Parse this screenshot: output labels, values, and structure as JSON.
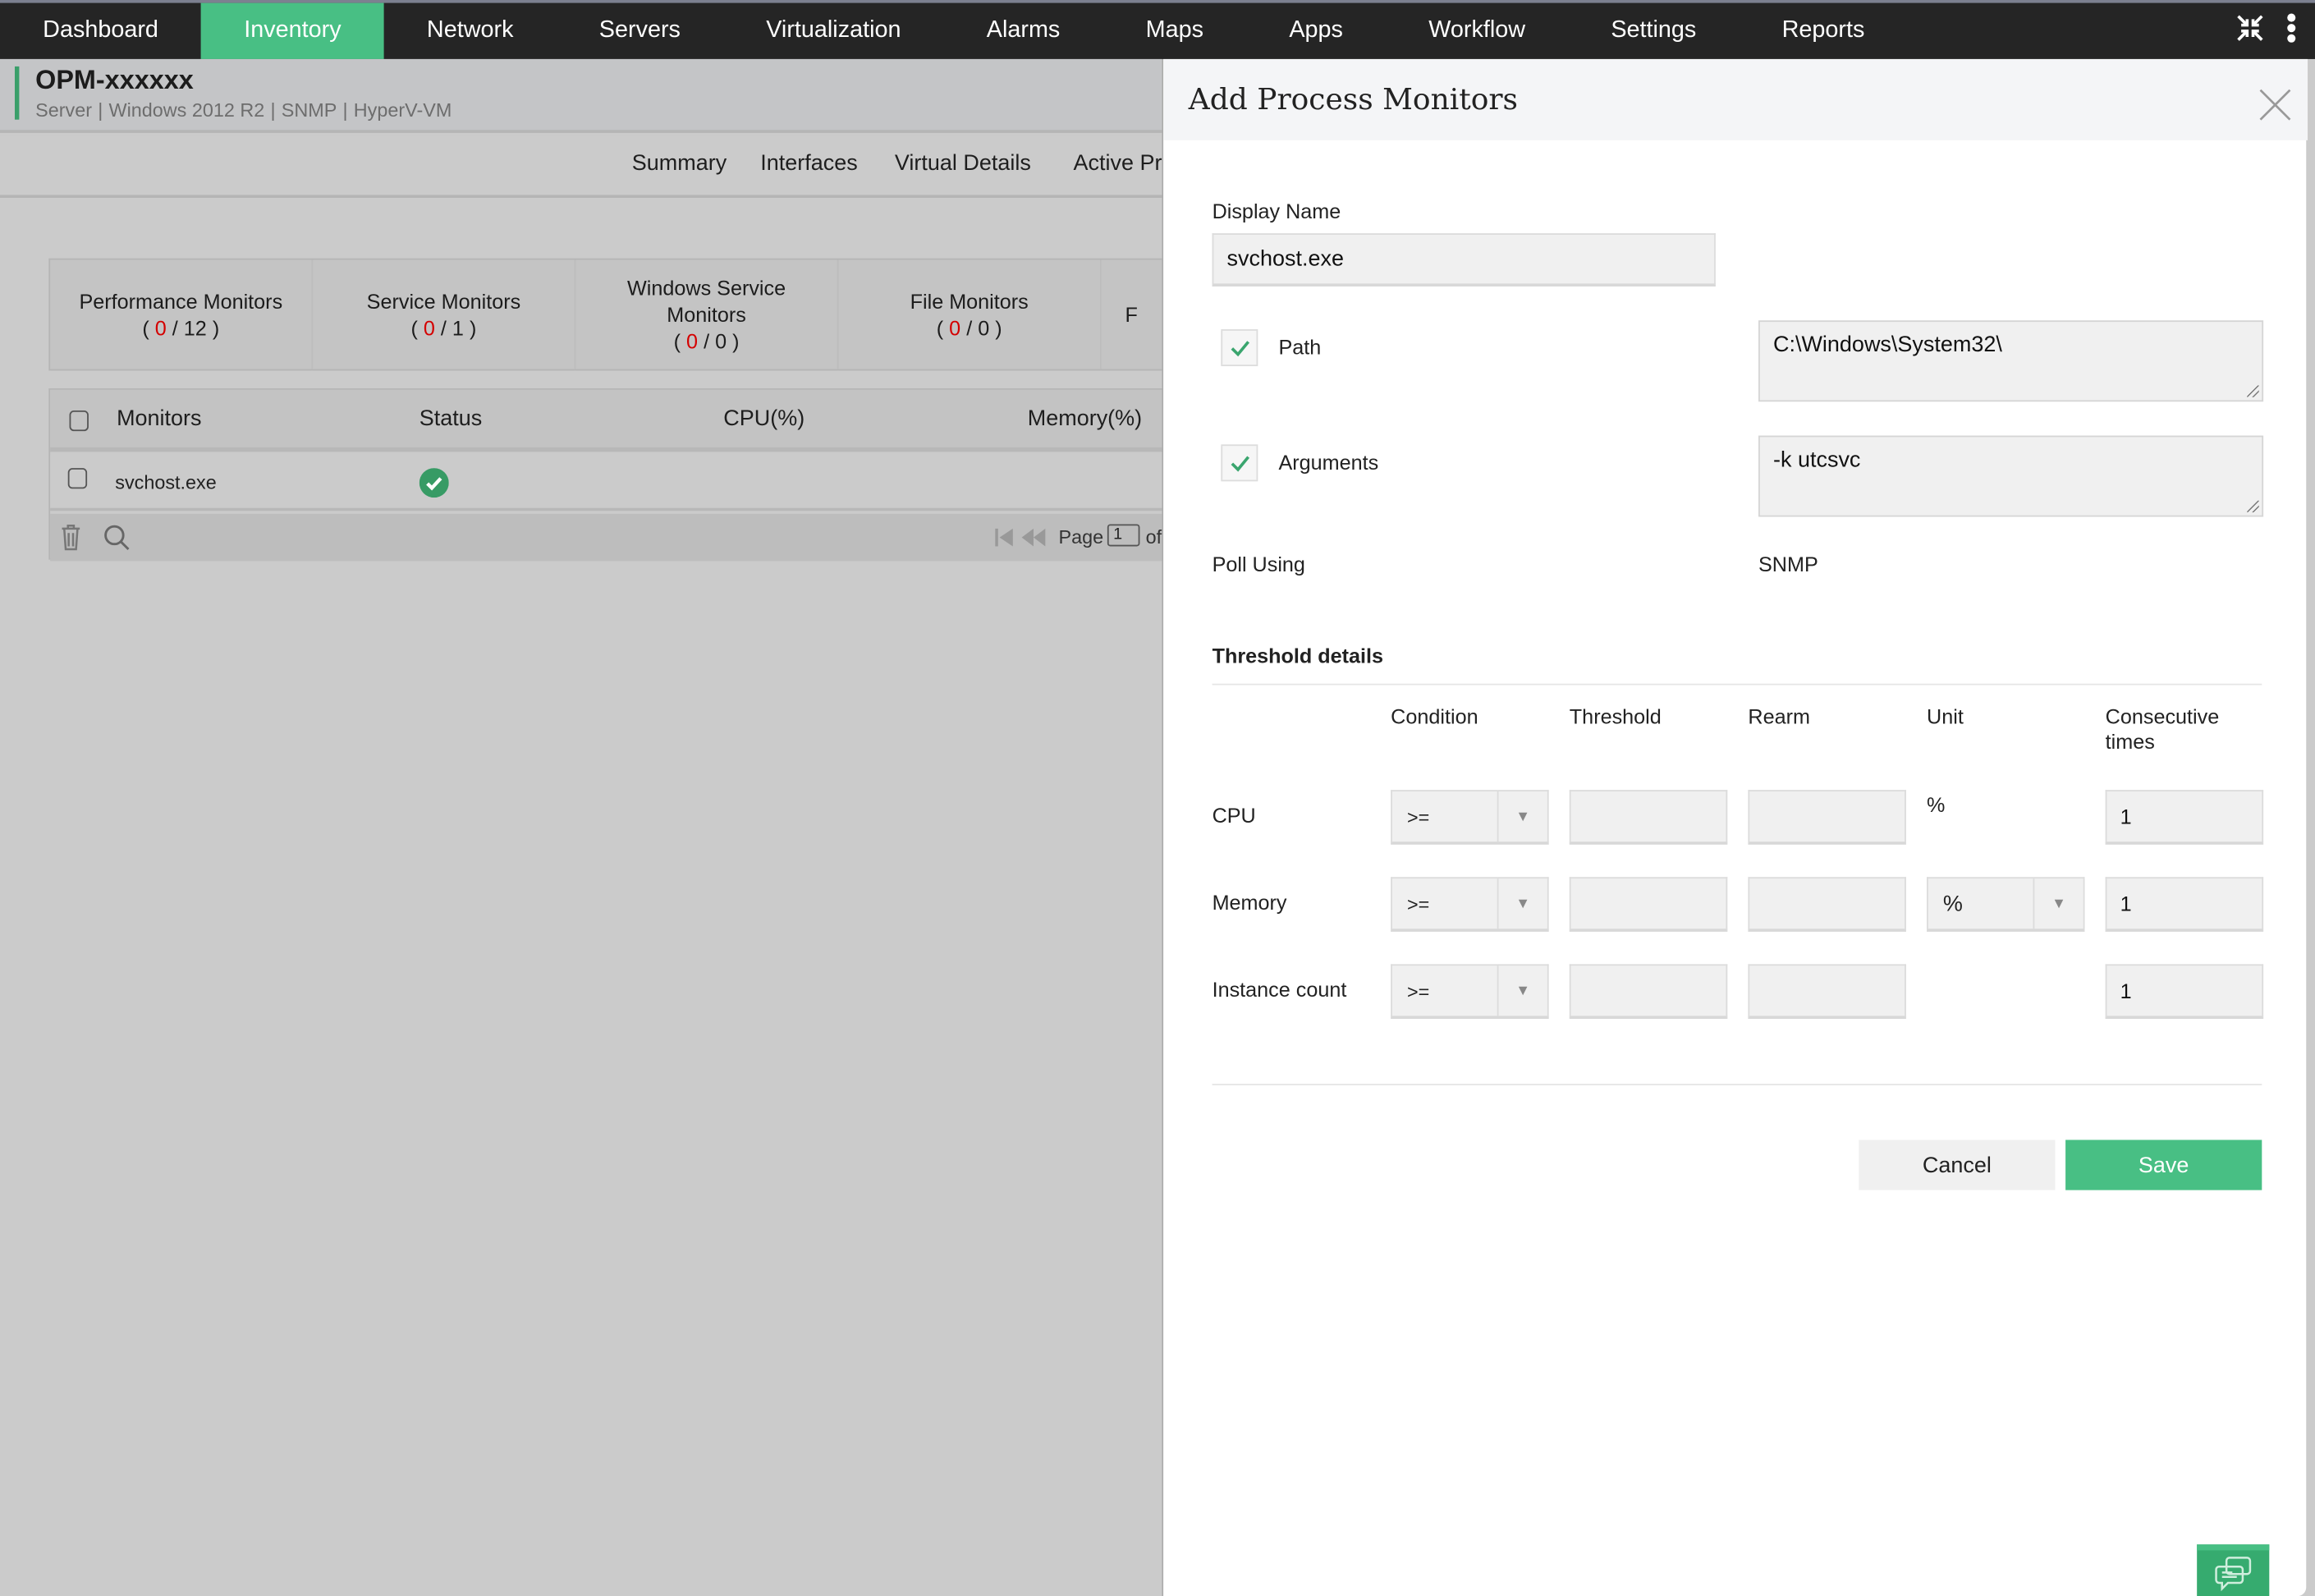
{
  "nav": {
    "items": [
      "Dashboard",
      "Inventory",
      "Network",
      "Servers",
      "Virtualization",
      "Alarms",
      "Maps",
      "Apps",
      "Workflow",
      "Settings",
      "Reports"
    ],
    "active": "Inventory",
    "accent": "#48bf84",
    "icons": [
      "collapse-icon",
      "more-vertical-icon"
    ]
  },
  "device": {
    "name": "OPM-xxxxxx",
    "type": "Server",
    "os": "Windows 2012 R2",
    "protocol": "SNMP",
    "category": "HyperV-VM"
  },
  "tabs": [
    "Summary",
    "Interfaces",
    "Virtual Details",
    "Active Pr"
  ],
  "cards": [
    {
      "label": "Performance Monitors",
      "down": "0",
      "total": "12"
    },
    {
      "label": "Service Monitors",
      "down": "0",
      "total": "1"
    },
    {
      "label": "Windows Service Monitors",
      "down": "0",
      "total": "0"
    },
    {
      "label": "File Monitors",
      "down": "0",
      "total": "0"
    },
    {
      "label": "F",
      "down": "",
      "total": ""
    }
  ],
  "table": {
    "headers": [
      "Monitors",
      "Status",
      "CPU(%)",
      "Memory(%)"
    ],
    "rows": [
      {
        "monitor": "svchost.exe",
        "status": "ok",
        "cpu": "",
        "memory": ""
      }
    ],
    "footer": {
      "page_label": "Page",
      "page": "1",
      "of": "of"
    }
  },
  "dialog": {
    "title": "Add Process Monitors",
    "display_name_label": "Display Name",
    "display_name": "svchost.exe",
    "path_label": "Path",
    "path_checked": true,
    "path": "C:\\Windows\\System32\\",
    "args_label": "Arguments",
    "args_checked": true,
    "args": "-k utcsvc",
    "poll_label": "Poll Using",
    "poll": "SNMP",
    "threshold_title": "Threshold details",
    "columns": [
      "Condition",
      "Threshold",
      "Rearm",
      "Unit",
      "Consecutive times"
    ],
    "rows": [
      {
        "name": "CPU",
        "condition": ">=",
        "threshold": "",
        "rearm": "",
        "unit": "%",
        "unit_select": false,
        "consecutive": "1"
      },
      {
        "name": "Memory",
        "condition": ">=",
        "threshold": "",
        "rearm": "",
        "unit": "%",
        "unit_select": true,
        "consecutive": "1"
      },
      {
        "name": "Instance count",
        "condition": ">=",
        "threshold": "",
        "rearm": "",
        "unit": "",
        "unit_select": false,
        "consecutive": "1"
      }
    ],
    "cancel": "Cancel",
    "save": "Save"
  }
}
